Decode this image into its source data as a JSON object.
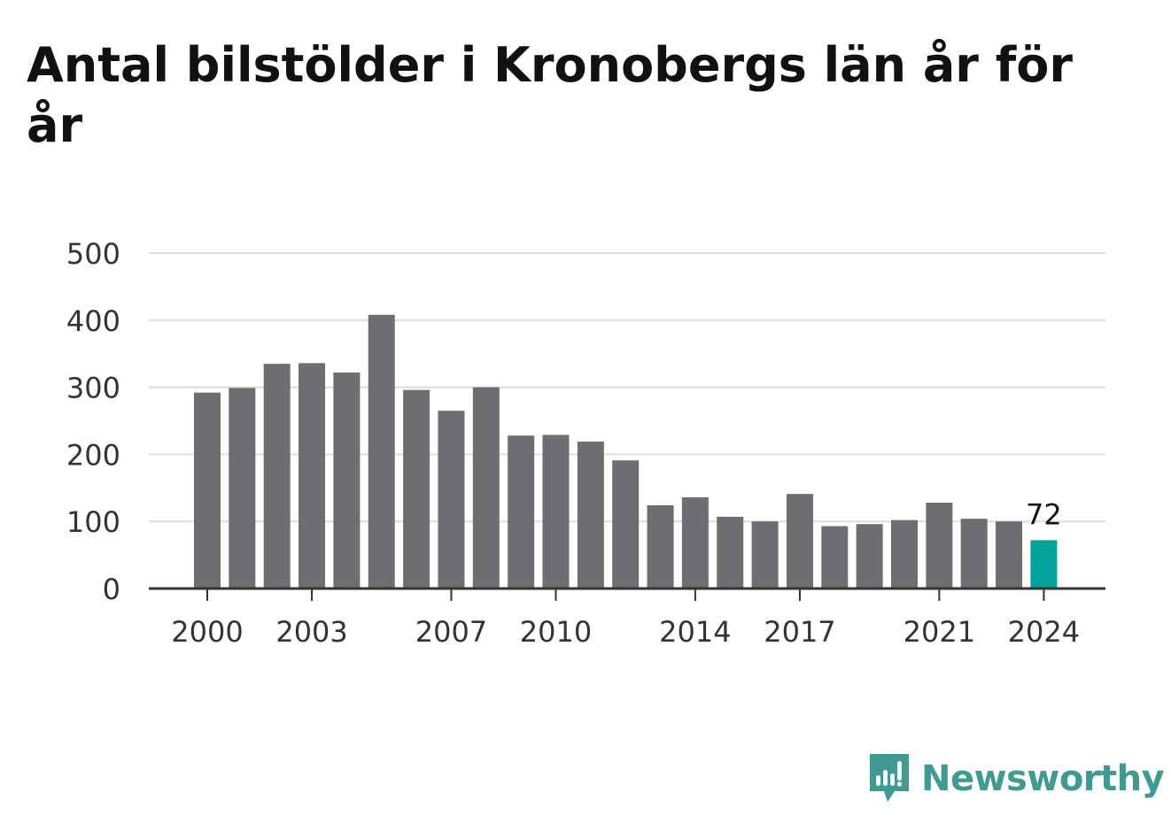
{
  "title": "Antal bilstölder i Kronobergs län år för år",
  "brand": {
    "name": "Newsworthy",
    "color": "#3f9a93",
    "icon": "newsworthy-logo-icon"
  },
  "colors": {
    "bar": "#6e6d72",
    "highlight": "#00a39a",
    "grid": "#dddddd",
    "axis": "#333333",
    "text": "#333333"
  },
  "chart_data": {
    "type": "bar",
    "title": "Antal bilstölder i Kronobergs län år för år",
    "xlabel": "",
    "ylabel": "",
    "ylim": [
      0,
      500
    ],
    "yticks": [
      0,
      100,
      200,
      300,
      400,
      500
    ],
    "xtick_labels": [
      "2000",
      "2003",
      "2007",
      "2010",
      "2014",
      "2017",
      "2021",
      "2024"
    ],
    "categories": [
      "2000",
      "2001",
      "2002",
      "2003",
      "2004",
      "2005",
      "2006",
      "2007",
      "2008",
      "2009",
      "2010",
      "2011",
      "2012",
      "2013",
      "2014",
      "2015",
      "2016",
      "2017",
      "2018",
      "2019",
      "2020",
      "2021",
      "2022",
      "2023",
      "2024"
    ],
    "values": [
      292,
      299,
      335,
      336,
      322,
      408,
      296,
      265,
      300,
      228,
      229,
      219,
      191,
      124,
      136,
      107,
      100,
      141,
      93,
      96,
      102,
      128,
      104,
      100,
      72
    ],
    "highlight_index": 24,
    "data_labels": [
      {
        "category": "2024",
        "text": "72"
      }
    ],
    "grid": true,
    "legend": "none"
  }
}
